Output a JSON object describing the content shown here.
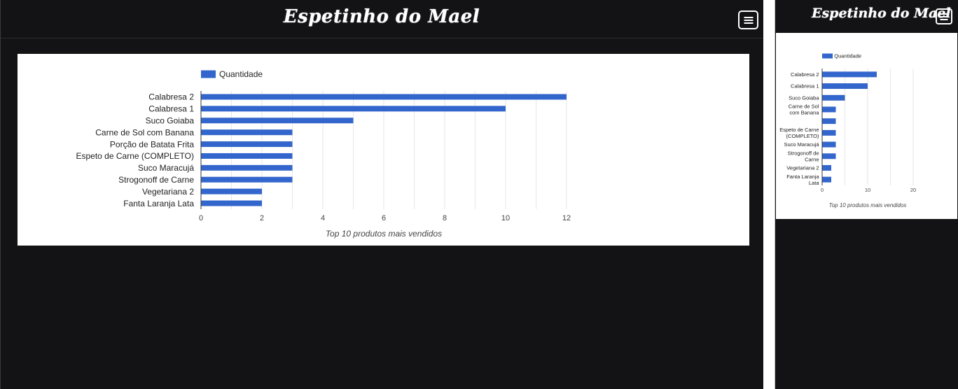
{
  "app": {
    "brand": "Espetinho do Mael",
    "menu_icon": "hamburger-menu-icon"
  },
  "colors": {
    "background": "#131315",
    "bar": "#3366cc",
    "card": "#ffffff"
  },
  "chart_data": [
    {
      "type": "bar",
      "orientation": "horizontal",
      "categories": [
        "Calabresa 2",
        "Calabresa 1",
        "Suco Goiaba",
        "Carne de Sol com Banana",
        "Porção de Batata Frita",
        "Espeto de Carne (COMPLETO)",
        "Suco Maracujá",
        "Strogonoff de Carne",
        "Vegetariana 2",
        "Fanta Laranja Lata"
      ],
      "series": [
        {
          "name": "Quantidade",
          "values": [
            12,
            10,
            5,
            3,
            3,
            3,
            3,
            3,
            2,
            2
          ]
        }
      ],
      "xlim": [
        0,
        12
      ],
      "x_ticks": [
        0,
        2,
        4,
        6,
        8,
        10,
        12
      ],
      "grid": true,
      "legend": "top-left",
      "caption": "Top 10 produtos mais vendidos"
    },
    {
      "type": "bar",
      "orientation": "horizontal",
      "category_lines": [
        [
          "Calabresa 2"
        ],
        [
          "Calabresa 1"
        ],
        [
          "Suco Goiaba"
        ],
        [
          "Carne de Sol",
          "com Banana"
        ],
        [],
        [
          "Espeto de Carne",
          "(COMPLETO)"
        ],
        [
          "Suco Maracujá"
        ],
        [
          "Strogonoff de",
          "Carne"
        ],
        [
          "Vegetariana 2"
        ],
        [
          "Fanta Laranja",
          "Lata"
        ]
      ],
      "series": [
        {
          "name": "Quantidade",
          "values": [
            12,
            10,
            5,
            3,
            3,
            3,
            3,
            3,
            2,
            2
          ]
        }
      ],
      "xlim": [
        0,
        20
      ],
      "x_ticks": [
        0,
        10,
        20
      ],
      "grid": true,
      "legend": "top-left",
      "caption": "Top 10 produtos mais vendidos"
    }
  ]
}
